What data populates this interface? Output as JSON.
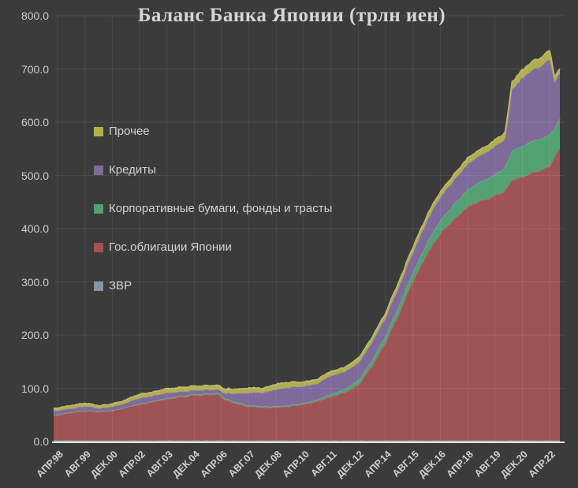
{
  "chart_data": {
    "type": "area",
    "stacked": true,
    "title": "Баланс Банка Японии (трлн иен)",
    "unit": "трлн иен",
    "grid": true,
    "legend_position": "left-middle",
    "ylim": [
      0,
      800
    ],
    "y_step": 100,
    "x_tick_labels": [
      "АПР.98",
      "АВГ.99",
      "ДЕК.00",
      "АПР.02",
      "АВГ.03",
      "ДЕК.04",
      "АПР.06",
      "АВГ.07",
      "ДЕК.08",
      "АПР.10",
      "АВГ.11",
      "ДЕК.12",
      "АПР.14",
      "АВГ.15",
      "ДЕК.16",
      "АПР.18",
      "АВГ.19",
      "ДЕК.20",
      "АПР.22"
    ],
    "x_months_per_tick": 16,
    "x_start_label": "АПР.98",
    "x_total_months": 294,
    "sample_months": [
      0,
      8,
      16,
      24,
      32,
      40,
      48,
      56,
      64,
      72,
      80,
      88,
      94,
      98,
      104,
      112,
      120,
      128,
      136,
      144,
      152,
      160,
      168,
      176,
      184,
      192,
      200,
      208,
      216,
      224,
      232,
      240,
      248,
      256,
      262,
      266,
      272,
      280,
      284,
      288,
      291,
      294
    ],
    "series": [
      {
        "key": "zvr",
        "name": "ЗВР",
        "color": "#8195a6",
        "values": [
          2,
          2,
          2,
          2,
          2,
          2,
          2,
          2,
          2,
          2,
          2,
          2,
          2,
          2,
          2,
          2,
          2,
          2,
          2,
          2,
          2,
          2,
          2,
          2,
          2,
          2,
          2,
          2,
          2,
          2,
          2,
          2,
          2,
          2,
          2,
          2,
          2,
          2,
          2,
          2,
          2,
          2
        ]
      },
      {
        "key": "jgb",
        "name": "Гос.облигации Японии",
        "color": "#a05355",
        "values": [
          48,
          52,
          56,
          54,
          56,
          62,
          68,
          73,
          78,
          82,
          85,
          86,
          87,
          77,
          70,
          64,
          62,
          62,
          64,
          68,
          74,
          82,
          90,
          104,
          140,
          185,
          240,
          300,
          350,
          390,
          415,
          440,
          450,
          460,
          470,
          490,
          495,
          505,
          510,
          515,
          535,
          550
        ]
      },
      {
        "key": "corp",
        "name": "Корпоративные бумаги, фонды и трасты",
        "color": "#53a173",
        "values": [
          0.5,
          0.5,
          0.5,
          0.5,
          0.5,
          0.5,
          1,
          1,
          1.5,
          2,
          2,
          2,
          2,
          2,
          2,
          2,
          2,
          2,
          2,
          2,
          3,
          5,
          6,
          8,
          10,
          12,
          14,
          16,
          20,
          24,
          28,
          32,
          36,
          40,
          44,
          55,
          58,
          60,
          58,
          60,
          52,
          55
        ]
      },
      {
        "key": "loans",
        "name": "Кредиты",
        "color": "#7f6b99",
        "values": [
          8,
          7,
          8,
          6,
          7,
          8,
          11,
          10,
          10,
          8,
          7,
          7,
          7,
          10,
          16,
          24,
          26,
          32,
          34,
          32,
          30,
          35,
          33,
          33,
          34,
          34,
          36,
          38,
          42,
          44,
          46,
          48,
          50,
          52,
          54,
          115,
          128,
          135,
          138,
          142,
          88,
          85
        ]
      },
      {
        "key": "other",
        "name": "Прочее",
        "color": "#b2ae4e",
        "values": [
          5,
          6,
          6,
          5,
          5,
          6,
          7,
          7,
          8,
          8,
          8,
          8,
          8,
          8,
          8,
          9,
          8,
          10,
          9,
          8,
          8,
          8,
          8,
          9,
          9,
          9,
          10,
          10,
          10,
          10,
          10,
          11,
          11,
          12,
          12,
          14,
          15,
          16,
          16,
          17,
          10,
          9
        ]
      }
    ],
    "legend_order": [
      "Прочее",
      "Кредиты",
      "Корпоративные бумаги, фонды и трасты",
      "Гос.облигации Японии",
      "ЗВР"
    ],
    "colors": {
      "background": "#3b3b3b",
      "gridline": "#4d4d4d",
      "axis_line": "#e8e6e3",
      "text": "#d3d1cf",
      "title_text": "#d8d6d3"
    }
  }
}
